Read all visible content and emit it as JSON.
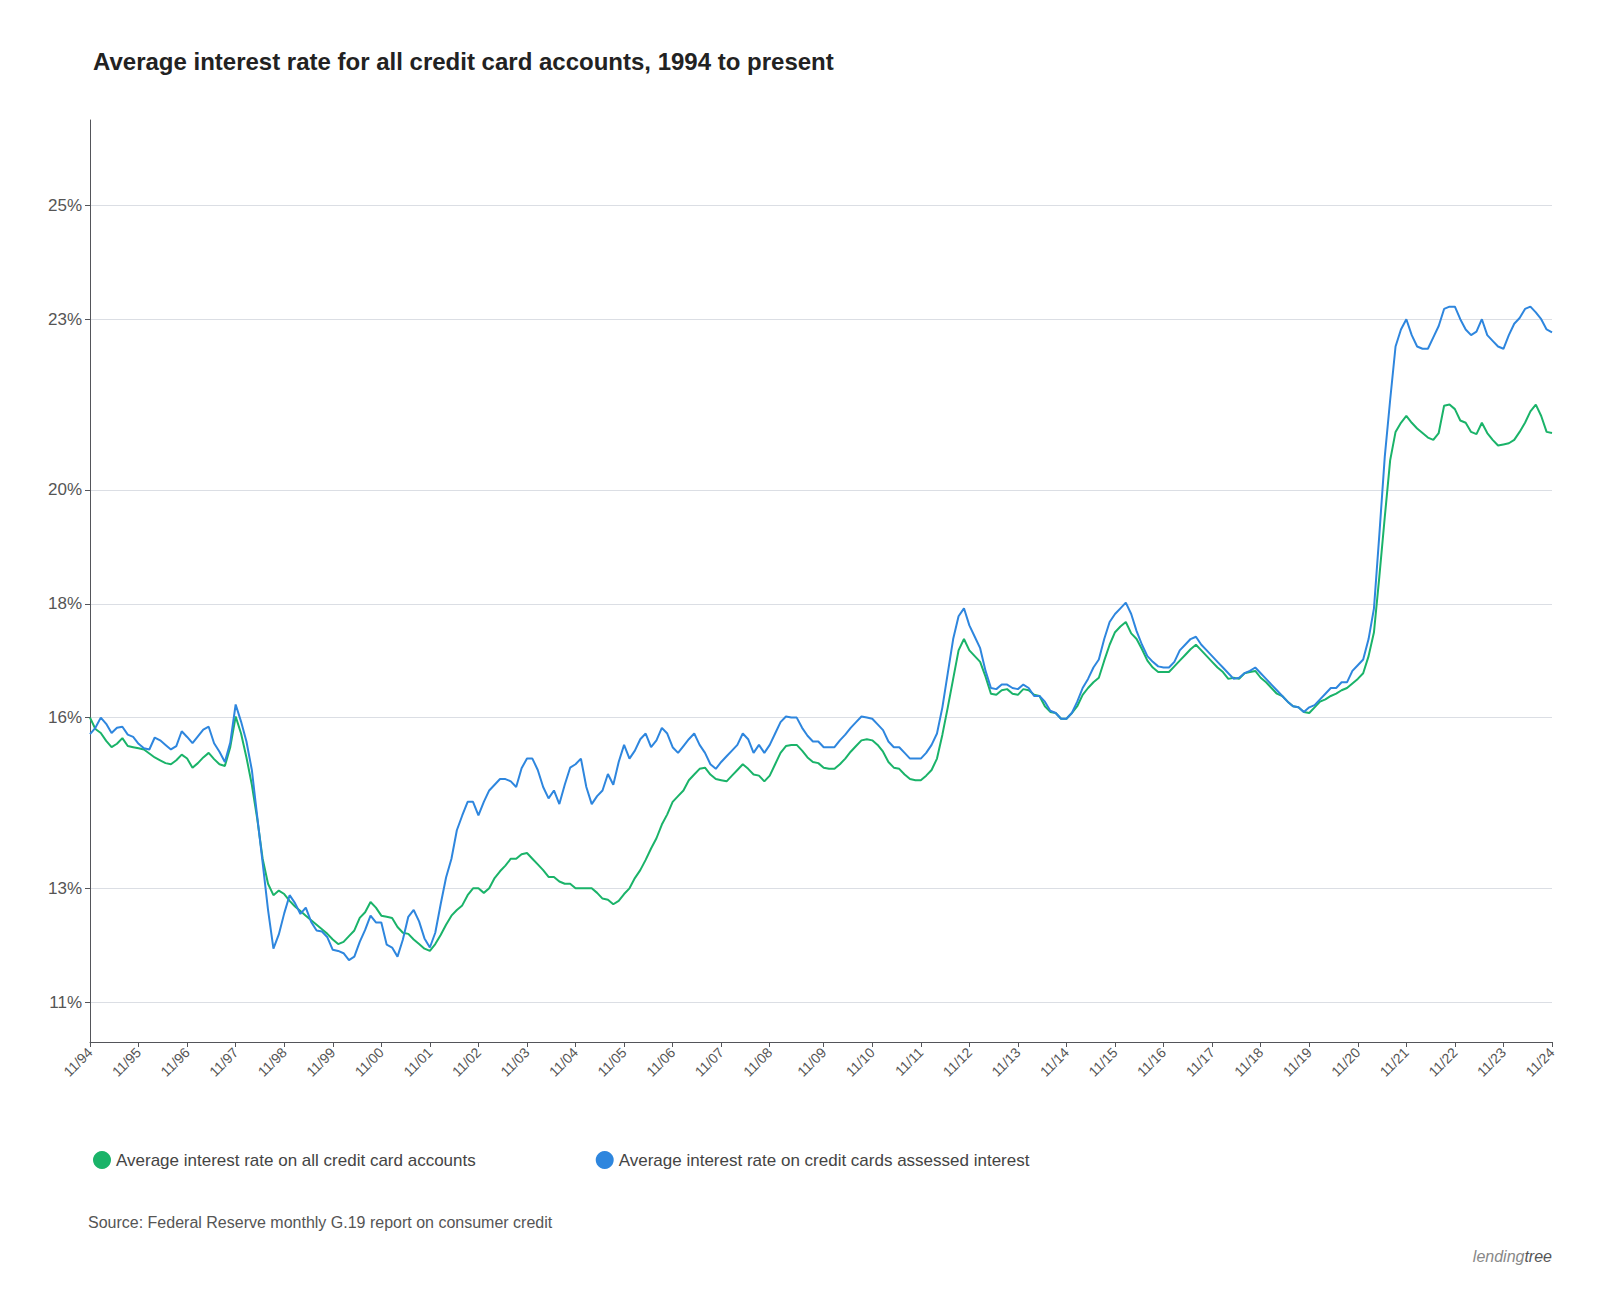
{
  "chart_data": {
    "type": "line",
    "title": "Average interest rate for all credit card accounts, 1994 to present",
    "categories": [
      "11/94",
      null,
      null,
      null,
      null,
      null,
      null,
      null,
      null,
      "11/95",
      null,
      null,
      null,
      null,
      null,
      null,
      null,
      null,
      "11/96",
      null,
      null,
      null,
      null,
      null,
      null,
      null,
      null,
      "11/97",
      null,
      null,
      null,
      null,
      null,
      null,
      null,
      null,
      "11/98",
      null,
      null,
      null,
      null,
      null,
      null,
      null,
      null,
      "11/99",
      null,
      null,
      null,
      null,
      null,
      null,
      null,
      null,
      "11/00",
      null,
      null,
      null,
      null,
      null,
      null,
      null,
      null,
      "11/01",
      null,
      null,
      null,
      null,
      null,
      null,
      null,
      null,
      "11/02",
      null,
      null,
      null,
      null,
      null,
      null,
      null,
      null,
      "11/03",
      null,
      null,
      null,
      null,
      null,
      null,
      null,
      null,
      "11/04",
      null,
      null,
      null,
      null,
      null,
      null,
      null,
      null,
      "11/05",
      null,
      null,
      null,
      null,
      null,
      null,
      null,
      null,
      "11/06",
      null,
      null,
      null,
      null,
      null,
      null,
      null,
      null,
      "11/07",
      null,
      null,
      null,
      null,
      null,
      null,
      null,
      null,
      "11/08",
      null,
      null,
      null,
      null,
      null,
      null,
      null,
      null,
      null,
      "11/09",
      null,
      null,
      null,
      null,
      null,
      null,
      null,
      null,
      "11/10",
      null,
      null,
      null,
      null,
      null,
      null,
      null,
      null,
      "11/11",
      null,
      null,
      null,
      null,
      null,
      null,
      null,
      null,
      "11/12",
      null,
      null,
      null,
      null,
      null,
      null,
      null,
      null,
      "11/13",
      null,
      null,
      null,
      null,
      null,
      null,
      null,
      null,
      "11/14",
      null,
      null,
      null,
      null,
      null,
      null,
      null,
      null,
      "11/15",
      null,
      null,
      null,
      null,
      null,
      null,
      null,
      null,
      "11/16",
      null,
      null,
      null,
      null,
      null,
      null,
      null,
      null,
      "11/17",
      null,
      null,
      null,
      null,
      null,
      null,
      null,
      null,
      "11/18",
      null,
      null,
      null,
      null,
      null,
      null,
      null,
      null,
      "11/19",
      null,
      null,
      null,
      null,
      null,
      null,
      null,
      null,
      "11/20",
      null,
      null,
      null,
      null,
      null,
      null,
      null,
      null,
      "11/21",
      null,
      null,
      null,
      null,
      null,
      null,
      null,
      null,
      "11/22",
      null,
      null,
      null,
      null,
      null,
      null,
      null,
      null,
      "11/23",
      null,
      null,
      null,
      null,
      null,
      null,
      null,
      null,
      "11/24"
    ],
    "series": [
      {
        "name": "Average interest rate on all credit card accounts",
        "color": "#1ab369",
        "values": [
          16.0,
          15.8,
          15.73,
          15.59,
          15.48,
          15.54,
          15.64,
          15.5,
          15.48,
          15.46,
          15.44,
          15.37,
          15.3,
          15.25,
          15.2,
          15.18,
          15.25,
          15.35,
          15.28,
          15.12,
          15.2,
          15.3,
          15.38,
          15.27,
          15.18,
          15.15,
          15.48,
          16.02,
          15.72,
          15.3,
          14.82,
          14.22,
          13.52,
          13.08,
          12.88,
          12.96,
          12.9,
          12.78,
          12.68,
          12.6,
          12.52,
          12.44,
          12.36,
          12.28,
          12.2,
          12.1,
          12.02,
          12.06,
          12.16,
          12.26,
          12.48,
          12.58,
          12.76,
          12.66,
          12.52,
          12.5,
          12.48,
          12.32,
          12.22,
          12.2,
          12.1,
          12.02,
          11.94,
          11.9,
          12.02,
          12.18,
          12.36,
          12.52,
          12.62,
          12.7,
          12.88,
          13.0,
          13.0,
          12.92,
          13.0,
          13.18,
          13.3,
          13.4,
          13.52,
          13.52,
          13.6,
          13.62,
          13.52,
          13.42,
          13.32,
          13.2,
          13.2,
          13.12,
          13.08,
          13.08,
          13.0,
          13.0,
          13.0,
          13.0,
          12.92,
          12.82,
          12.8,
          12.72,
          12.78,
          12.9,
          13.0,
          13.18,
          13.32,
          13.5,
          13.7,
          13.88,
          14.12,
          14.3,
          14.52,
          14.62,
          14.72,
          14.9,
          15.0,
          15.1,
          15.12,
          15.0,
          14.92,
          14.9,
          14.88,
          14.98,
          15.08,
          15.18,
          15.1,
          15.0,
          14.98,
          14.88,
          14.98,
          15.18,
          15.38,
          15.5,
          15.52,
          15.52,
          15.42,
          15.3,
          15.22,
          15.2,
          15.12,
          15.1,
          15.1,
          15.18,
          15.28,
          15.4,
          15.5,
          15.6,
          15.62,
          15.6,
          15.52,
          15.4,
          15.22,
          15.12,
          15.1,
          15.0,
          14.92,
          14.9,
          14.9,
          14.98,
          15.08,
          15.28,
          15.7,
          16.18,
          16.68,
          17.18,
          17.38,
          17.18,
          17.08,
          16.98,
          16.72,
          16.42,
          16.4,
          16.48,
          16.5,
          16.42,
          16.4,
          16.5,
          16.48,
          16.4,
          16.38,
          16.2,
          16.1,
          16.08,
          15.98,
          15.98,
          16.08,
          16.2,
          16.4,
          16.52,
          16.62,
          16.7,
          17.0,
          17.28,
          17.5,
          17.6,
          17.68,
          17.48,
          17.38,
          17.2,
          17.0,
          16.88,
          16.8,
          16.8,
          16.8,
          16.9,
          17.0,
          17.1,
          17.2,
          17.28,
          17.18,
          17.08,
          16.98,
          16.88,
          16.8,
          16.68,
          16.7,
          16.68,
          16.78,
          16.8,
          16.82,
          16.7,
          16.62,
          16.52,
          16.42,
          16.38,
          16.28,
          16.2,
          16.18,
          16.1,
          16.08,
          16.18,
          16.28,
          16.32,
          16.38,
          16.42,
          16.48,
          16.52,
          16.6,
          16.68,
          16.78,
          17.08,
          17.5,
          18.48,
          19.52,
          20.52,
          21.02,
          21.18,
          21.3,
          21.18,
          21.08,
          21.0,
          20.92,
          20.88,
          21.0,
          21.48,
          21.5,
          21.42,
          21.22,
          21.18,
          21.02,
          20.98,
          21.18,
          21.0,
          20.88,
          20.78,
          20.8,
          20.82,
          20.88,
          21.02,
          21.18,
          21.38,
          21.5,
          21.3,
          21.02,
          21.0
        ]
      },
      {
        "name": "Average interest rate on credit cards assessed interest",
        "color": "#2e86de",
        "values": [
          15.71,
          15.82,
          16.0,
          15.89,
          15.73,
          15.82,
          15.84,
          15.7,
          15.66,
          15.54,
          15.46,
          15.44,
          15.65,
          15.6,
          15.52,
          15.44,
          15.5,
          15.76,
          15.66,
          15.55,
          15.67,
          15.79,
          15.84,
          15.55,
          15.4,
          15.22,
          15.56,
          16.23,
          15.93,
          15.58,
          15.08,
          14.26,
          13.45,
          12.62,
          11.94,
          12.19,
          12.56,
          12.88,
          12.74,
          12.55,
          12.66,
          12.41,
          12.26,
          12.24,
          12.14,
          11.92,
          11.9,
          11.86,
          11.74,
          11.8,
          12.06,
          12.27,
          12.52,
          12.4,
          12.4,
          12.01,
          11.96,
          11.8,
          12.1,
          12.5,
          12.62,
          12.42,
          12.12,
          11.96,
          12.22,
          12.72,
          13.19,
          13.52,
          14.02,
          14.28,
          14.52,
          14.52,
          14.28,
          14.52,
          14.72,
          14.82,
          14.92,
          14.92,
          14.88,
          14.78,
          15.11,
          15.28,
          15.28,
          15.08,
          14.78,
          14.58,
          14.72,
          14.48,
          14.82,
          15.12,
          15.18,
          15.28,
          14.78,
          14.48,
          14.62,
          14.72,
          15.01,
          14.82,
          15.22,
          15.52,
          15.28,
          15.42,
          15.62,
          15.72,
          15.48,
          15.6,
          15.82,
          15.72,
          15.48,
          15.38,
          15.5,
          15.62,
          15.72,
          15.52,
          15.38,
          15.18,
          15.1,
          15.22,
          15.32,
          15.42,
          15.52,
          15.72,
          15.62,
          15.38,
          15.52,
          15.38,
          15.52,
          15.72,
          15.92,
          16.02,
          16.0,
          16.0,
          15.82,
          15.68,
          15.58,
          15.58,
          15.48,
          15.48,
          15.48,
          15.6,
          15.7,
          15.82,
          15.92,
          16.02,
          16.0,
          15.98,
          15.88,
          15.78,
          15.58,
          15.48,
          15.48,
          15.38,
          15.28,
          15.28,
          15.28,
          15.38,
          15.52,
          15.72,
          16.18,
          16.78,
          17.38,
          17.78,
          17.92,
          17.62,
          17.42,
          17.22,
          16.82,
          16.52,
          16.5,
          16.58,
          16.58,
          16.52,
          16.5,
          16.58,
          16.52,
          16.38,
          16.38,
          16.28,
          16.12,
          16.08,
          15.98,
          15.98,
          16.08,
          16.28,
          16.52,
          16.68,
          16.88,
          17.02,
          17.38,
          17.68,
          17.82,
          17.92,
          18.02,
          17.82,
          17.52,
          17.28,
          17.08,
          16.98,
          16.9,
          16.88,
          16.88,
          16.98,
          17.18,
          17.28,
          17.38,
          17.42,
          17.28,
          17.18,
          17.08,
          16.98,
          16.88,
          16.78,
          16.68,
          16.7,
          16.78,
          16.82,
          16.88,
          16.78,
          16.68,
          16.58,
          16.48,
          16.38,
          16.28,
          16.2,
          16.18,
          16.1,
          16.18,
          16.22,
          16.32,
          16.42,
          16.52,
          16.52,
          16.62,
          16.62,
          16.82,
          16.92,
          17.02,
          17.38,
          17.92,
          19.22,
          20.58,
          21.58,
          22.52,
          22.82,
          23.0,
          22.72,
          22.52,
          22.48,
          22.48,
          22.68,
          22.88,
          23.18,
          23.22,
          23.22,
          23.0,
          22.82,
          22.72,
          22.78,
          23.0,
          22.72,
          22.62,
          22.52,
          22.48,
          22.72,
          22.92,
          23.02,
          23.18,
          23.22,
          23.12,
          23.0,
          22.82,
          22.77
        ]
      }
    ],
    "ylim": [
      10.3,
      26.5
    ],
    "yticks": [
      {
        "value": 11,
        "label": "11%"
      },
      {
        "value": 13,
        "label": "13%"
      },
      {
        "value": 16,
        "label": "16%"
      },
      {
        "value": 18,
        "label": "18%"
      },
      {
        "value": 20,
        "label": "20%"
      },
      {
        "value": 23,
        "label": "23%"
      },
      {
        "value": 25,
        "label": "25%"
      }
    ],
    "grid": true,
    "legend": "bottom",
    "annotations": [
      "Source: Federal Reserve monthly G.19 report on consumer credit",
      "lending",
      "tree"
    ]
  }
}
